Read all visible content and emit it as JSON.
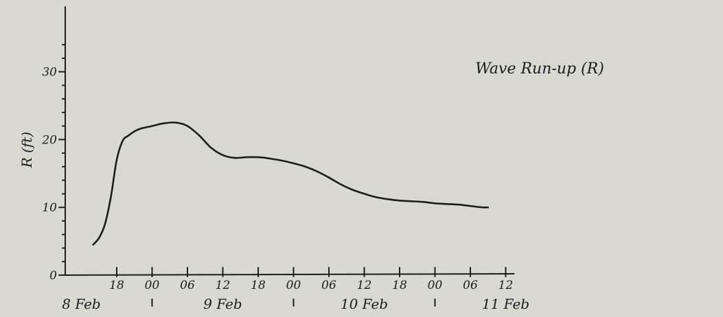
{
  "chart_data": {
    "type": "line",
    "title": "Wave Run-up (R)",
    "ylabel": "R (ft)",
    "xlabel": "",
    "ylim": [
      0,
      38
    ],
    "yticks": [
      0,
      10,
      20,
      30
    ],
    "ytick_labels": [
      "0",
      "10",
      "20",
      "30"
    ],
    "xticks": [
      "8 Feb 18:00",
      "9 Feb 00:00",
      "9 Feb 06:00",
      "9 Feb 12:00",
      "9 Feb 18:00",
      "10 Feb 00:00",
      "10 Feb 06:00",
      "10 Feb 12:00",
      "10 Feb 18:00",
      "11 Feb 00:00",
      "11 Feb 06:00",
      "11 Feb 12:00"
    ],
    "xtick_labels": [
      "18",
      "00",
      "06",
      "12",
      "18",
      "00",
      "06",
      "12",
      "18",
      "00",
      "06",
      "12"
    ],
    "day_labels": [
      {
        "label": "8 Feb",
        "date": "8 Feb 12:00"
      },
      {
        "label": "9 Feb",
        "date": "9 Feb 12:00"
      },
      {
        "label": "10 Feb",
        "date": "10 Feb 12:00"
      },
      {
        "label": "11 Feb",
        "date": "11 Feb 12:00"
      }
    ],
    "day_separators": [
      "9 Feb 00:00",
      "10 Feb 00:00",
      "11 Feb 00:00"
    ],
    "grid": false,
    "series": [
      {
        "values": [
          {
            "x": "8 Feb 14:00",
            "y": 4.5
          },
          {
            "x": "8 Feb 15:00",
            "y": 5.5
          },
          {
            "x": "8 Feb 16:00",
            "y": 7.5
          },
          {
            "x": "8 Feb 17:00",
            "y": 11.5
          },
          {
            "x": "8 Feb 18:00",
            "y": 17.0
          },
          {
            "x": "8 Feb 19:00",
            "y": 19.8
          },
          {
            "x": "8 Feb 20:00",
            "y": 20.6
          },
          {
            "x": "8 Feb 21:00",
            "y": 21.2
          },
          {
            "x": "8 Feb 22:00",
            "y": 21.6
          },
          {
            "x": "9 Feb 00:00",
            "y": 22.0
          },
          {
            "x": "9 Feb 02:00",
            "y": 22.4
          },
          {
            "x": "9 Feb 04:00",
            "y": 22.5
          },
          {
            "x": "9 Feb 06:00",
            "y": 22.0
          },
          {
            "x": "9 Feb 08:00",
            "y": 20.6
          },
          {
            "x": "9 Feb 10:00",
            "y": 18.8
          },
          {
            "x": "9 Feb 12:00",
            "y": 17.7
          },
          {
            "x": "9 Feb 14:00",
            "y": 17.3
          },
          {
            "x": "9 Feb 16:00",
            "y": 17.4
          },
          {
            "x": "9 Feb 18:00",
            "y": 17.4
          },
          {
            "x": "9 Feb 20:00",
            "y": 17.2
          },
          {
            "x": "9 Feb 22:00",
            "y": 16.9
          },
          {
            "x": "10 Feb 00:00",
            "y": 16.5
          },
          {
            "x": "10 Feb 02:00",
            "y": 16.0
          },
          {
            "x": "10 Feb 04:00",
            "y": 15.3
          },
          {
            "x": "10 Feb 06:00",
            "y": 14.4
          },
          {
            "x": "10 Feb 08:00",
            "y": 13.4
          },
          {
            "x": "10 Feb 10:00",
            "y": 12.6
          },
          {
            "x": "10 Feb 12:00",
            "y": 12.0
          },
          {
            "x": "10 Feb 14:00",
            "y": 11.5
          },
          {
            "x": "10 Feb 16:00",
            "y": 11.2
          },
          {
            "x": "10 Feb 18:00",
            "y": 11.0
          },
          {
            "x": "10 Feb 20:00",
            "y": 10.9
          },
          {
            "x": "10 Feb 22:00",
            "y": 10.8
          },
          {
            "x": "11 Feb 00:00",
            "y": 10.6
          },
          {
            "x": "11 Feb 02:00",
            "y": 10.5
          },
          {
            "x": "11 Feb 04:00",
            "y": 10.4
          },
          {
            "x": "11 Feb 06:00",
            "y": 10.2
          },
          {
            "x": "11 Feb 08:00",
            "y": 10.0
          },
          {
            "x": "11 Feb 09:00",
            "y": 10.0
          }
        ]
      }
    ]
  },
  "colors": {
    "background": "#d9d9d1",
    "ink": "#1c1c1c"
  }
}
